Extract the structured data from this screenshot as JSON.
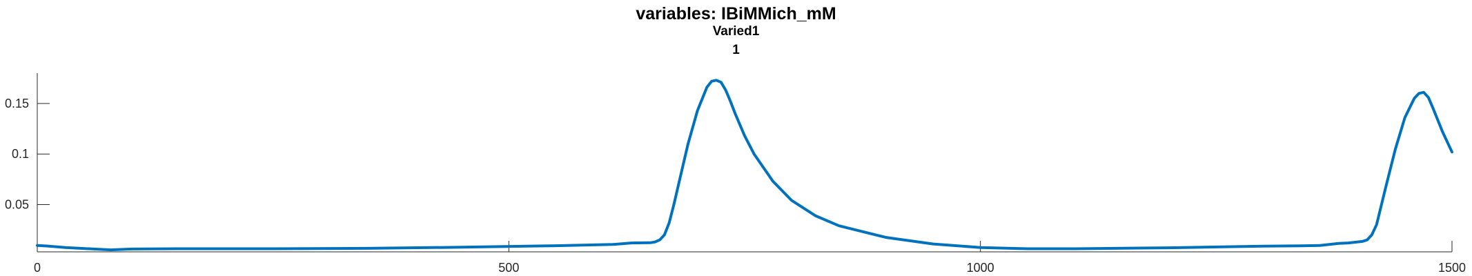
{
  "figure": {
    "title_lines": [
      "variables: IBiMMich_mM",
      "Varied1",
      "1"
    ]
  },
  "chart_data": {
    "type": "line",
    "title": "variables: IBiMMich_mM",
    "subtitle": [
      "Varied1",
      "1"
    ],
    "xlabel": "",
    "ylabel": "",
    "xlim": [
      0,
      1500
    ],
    "ylim": [
      0.0032,
      0.18
    ],
    "xticks": [
      0,
      500,
      1000,
      1500
    ],
    "xtick_labels": [
      "0",
      "500",
      "1000",
      "1500"
    ],
    "yticks": [
      0.05,
      0.1,
      0.15
    ],
    "ytick_labels": [
      "0.05",
      "0.1",
      "0.15"
    ],
    "grid": false,
    "line_color": "#0072BD",
    "series": [
      {
        "x": [
          0,
          10,
          30,
          60,
          78,
          100,
          150,
          250,
          350,
          450,
          550,
          610,
          630,
          650,
          655,
          660,
          665,
          670,
          675,
          680,
          690,
          700,
          710,
          715,
          720,
          725,
          730,
          735,
          740,
          750,
          760,
          780,
          800,
          825,
          850,
          900,
          950,
          1000,
          1050,
          1100,
          1200,
          1300,
          1340,
          1360,
          1380,
          1390,
          1400,
          1405,
          1410,
          1415,
          1420,
          1430,
          1440,
          1450,
          1460,
          1465,
          1470,
          1475,
          1480,
          1490,
          1500
        ],
        "y": [
          0.0095,
          0.009,
          0.0075,
          0.006,
          0.0052,
          0.006,
          0.0063,
          0.0063,
          0.0067,
          0.0078,
          0.0093,
          0.0105,
          0.012,
          0.0122,
          0.013,
          0.015,
          0.02,
          0.032,
          0.05,
          0.07,
          0.11,
          0.143,
          0.166,
          0.172,
          0.173,
          0.171,
          0.163,
          0.152,
          0.14,
          0.118,
          0.1,
          0.073,
          0.054,
          0.039,
          0.029,
          0.0175,
          0.011,
          0.0075,
          0.0063,
          0.0063,
          0.0072,
          0.0088,
          0.0092,
          0.0095,
          0.0115,
          0.012,
          0.013,
          0.0135,
          0.015,
          0.02,
          0.03,
          0.068,
          0.105,
          0.136,
          0.155,
          0.16,
          0.161,
          0.156,
          0.145,
          0.122,
          0.102
        ]
      }
    ]
  }
}
